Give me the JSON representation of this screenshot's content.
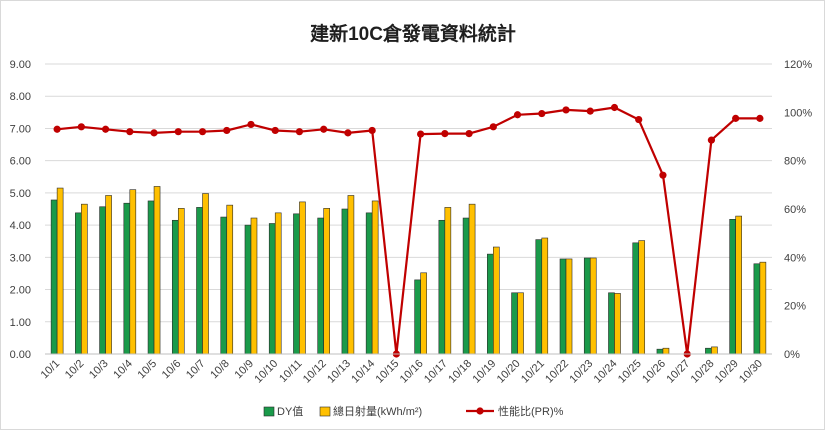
{
  "chart_data": {
    "type": "bar",
    "title": "建新10C倉發電資料統計",
    "categories": [
      "10/1",
      "10/2",
      "10/3",
      "10/4",
      "10/5",
      "10/6",
      "10/7",
      "10/8",
      "10/9",
      "10/10",
      "10/11",
      "10/12",
      "10/13",
      "10/14",
      "10/15",
      "10/16",
      "10/17",
      "10/18",
      "10/19",
      "10/20",
      "10/21",
      "10/22",
      "10/23",
      "10/24",
      "10/25",
      "10/26",
      "10/27",
      "10/28",
      "10/29",
      "10/30"
    ],
    "series": [
      {
        "name": "DY值",
        "type": "bar",
        "axis": "left",
        "color": "#1a9a4a",
        "values": [
          4.78,
          4.38,
          4.57,
          4.68,
          4.75,
          4.15,
          4.55,
          4.25,
          4.0,
          4.05,
          4.35,
          4.22,
          4.5,
          4.38,
          0,
          2.3,
          4.15,
          4.22,
          3.1,
          1.9,
          3.55,
          2.95,
          2.98,
          1.9,
          3.45,
          0.15,
          0,
          0.18,
          4.18,
          2.8
        ]
      },
      {
        "name": "總日射量(kWh/m²)",
        "type": "bar",
        "axis": "left",
        "color": "#ffc000",
        "values": [
          5.15,
          4.65,
          4.92,
          5.1,
          5.2,
          4.52,
          4.98,
          4.62,
          4.22,
          4.38,
          4.72,
          4.52,
          4.92,
          4.75,
          0,
          2.52,
          4.55,
          4.65,
          3.32,
          1.9,
          3.6,
          2.95,
          2.98,
          1.88,
          3.52,
          0.18,
          0,
          0.22,
          4.28,
          2.85
        ]
      },
      {
        "name": "性能比(PR)%",
        "type": "line",
        "axis": "right",
        "color": "#c00000",
        "values": [
          93,
          94,
          93,
          92,
          91.5,
          92,
          92,
          92.5,
          95,
          92.5,
          92,
          93,
          91.5,
          92.5,
          0,
          91,
          91.2,
          91.2,
          94,
          99,
          99.5,
          101,
          100.5,
          102,
          97,
          74,
          0,
          88.5,
          97.5,
          97.5
        ]
      }
    ],
    "y_left": {
      "min": 0,
      "max": 9,
      "step": 1,
      "tick_labels": [
        "0.00",
        "1.00",
        "2.00",
        "3.00",
        "4.00",
        "5.00",
        "6.00",
        "7.00",
        "8.00",
        "9.00"
      ]
    },
    "y_right": {
      "min": 0,
      "max": 120,
      "step": 20,
      "tick_labels": [
        "0%",
        "20%",
        "40%",
        "60%",
        "80%",
        "100%",
        "120%"
      ]
    },
    "grid": true,
    "legend_position": "bottom",
    "colors": {
      "bar_border": "#2b2b2b",
      "grid": "#d9d9d9",
      "axis_text": "#404040",
      "title": "#1f1f1f"
    }
  }
}
